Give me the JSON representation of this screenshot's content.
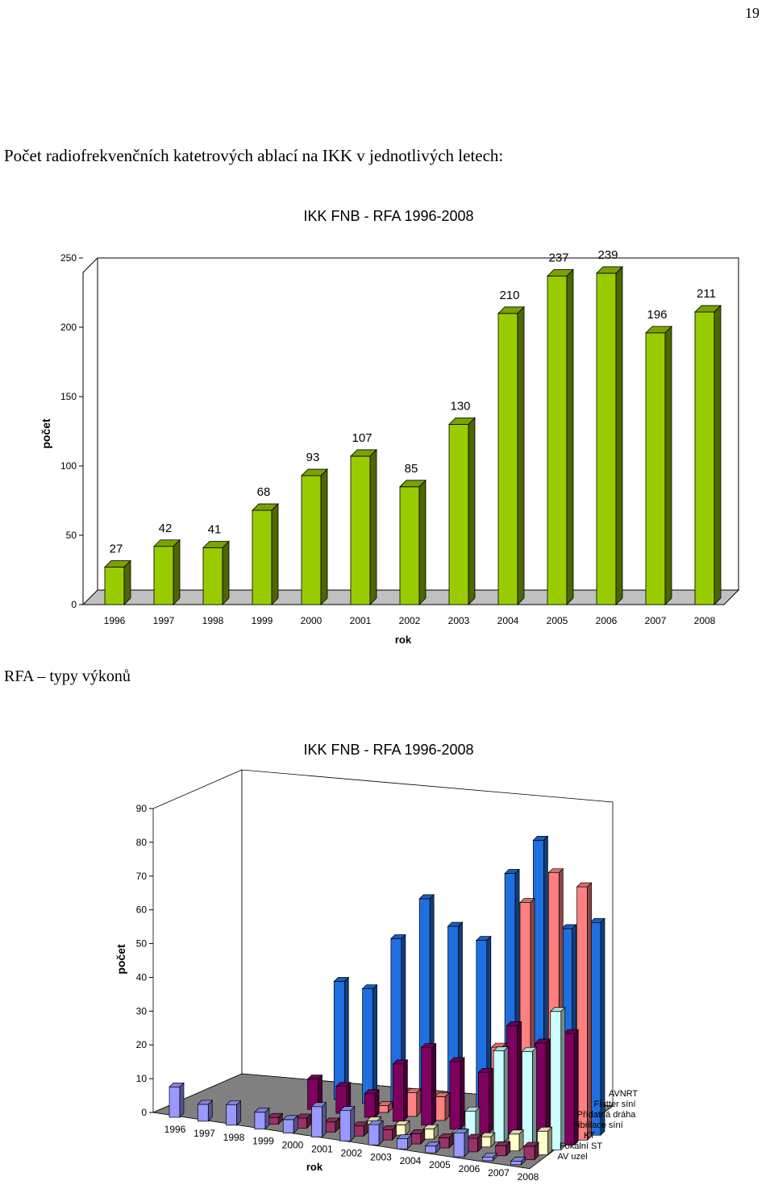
{
  "page": {
    "number": "19",
    "heading": "Počet radiofrekvenčních katetrových ablací na IKK v jednotlivých letech:",
    "section_title": "RFA – typy výkonů"
  },
  "chart_data": [
    {
      "type": "bar",
      "title": "IKK FNB - RFA 1996-2008",
      "xlabel": "rok",
      "ylabel": "počet",
      "ylim": [
        0,
        250
      ],
      "yticks": [
        "0",
        "50",
        "100",
        "150",
        "200",
        "250"
      ],
      "categories": [
        "1996",
        "1997",
        "1998",
        "1999",
        "2000",
        "2001",
        "2002",
        "2003",
        "2004",
        "2005",
        "2006",
        "2007",
        "2008"
      ],
      "values": [
        27,
        42,
        41,
        68,
        93,
        107,
        85,
        130,
        210,
        237,
        239,
        196,
        211
      ],
      "color": "#99cc00",
      "grid": false,
      "style": "3d"
    },
    {
      "type": "bar",
      "title": "IKK FNB - RFA 1996-2008",
      "xlabel": "rok",
      "ylabel": "počet",
      "ylim": [
        0,
        90
      ],
      "yticks": [
        "0",
        "10",
        "20",
        "30",
        "40",
        "50",
        "60",
        "70",
        "80",
        "90"
      ],
      "categories": [
        "1996",
        "1997",
        "1998",
        "1999",
        "2000",
        "2001",
        "2002",
        "2003",
        "2004",
        "2005",
        "2006",
        "2007",
        "2008"
      ],
      "series": [
        {
          "name": "AVNRT",
          "color": "#1f6fe0",
          "values": [
            0,
            0,
            0,
            35,
            34,
            50,
            63,
            56,
            53,
            74,
            85,
            60,
            63
          ]
        },
        {
          "name": "Flutter síní",
          "color": "#ff8080",
          "values": [
            0,
            0,
            0,
            0,
            0,
            2,
            7,
            7,
            3,
            24,
            68,
            78,
            75
          ]
        },
        {
          "name": "Přídatná dráha",
          "color": "#800060",
          "values": [
            0,
            0,
            0,
            9,
            8,
            7,
            17,
            23,
            20,
            18,
            33,
            29,
            33
          ]
        },
        {
          "name": "Fibrilace síní",
          "color": "#ccffff",
          "values": [
            0,
            0,
            0,
            0,
            0,
            0,
            0,
            0,
            0,
            8,
            27,
            28,
            41
          ]
        },
        {
          "name": "KT",
          "color": "#ffffcc",
          "values": [
            0,
            0,
            0,
            0,
            0,
            2,
            3,
            3,
            3,
            3,
            3,
            5,
            7
          ]
        },
        {
          "name": "Fokální ST",
          "color": "#993366",
          "values": [
            0,
            0,
            0,
            2,
            3,
            3,
            3,
            3,
            3,
            3,
            4,
            3,
            4
          ]
        },
        {
          "name": "AV uzel",
          "color": "#9999ff",
          "values": [
            9,
            5,
            6,
            5,
            4,
            9,
            9,
            6,
            3,
            2,
            7,
            1,
            1
          ]
        }
      ],
      "style": "3d",
      "legend_placement": "bottom-right"
    }
  ]
}
